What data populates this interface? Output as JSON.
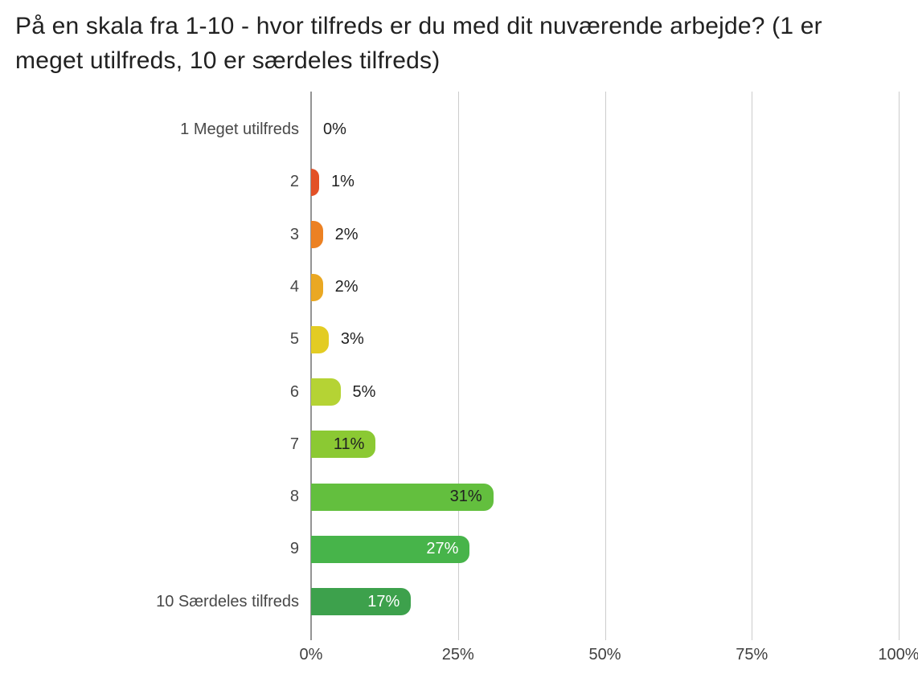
{
  "title": "På en skala fra 1-10 - hvor tilfreds er du med dit nuværende arbejde? (1 er meget utilfreds, 10 er særdeles tilfreds)",
  "chart_data": {
    "type": "bar",
    "orientation": "horizontal",
    "title": "På en skala fra 1-10 - hvor tilfreds er du med dit nuværende arbejde? (1 er meget utilfreds, 10 er særdeles tilfreds)",
    "categories": [
      "1 Meget utilfreds",
      "2",
      "3",
      "4",
      "5",
      "6",
      "7",
      "8",
      "9",
      "10 Særdeles tilfreds"
    ],
    "values": [
      0,
      1,
      2,
      2,
      3,
      5,
      11,
      31,
      27,
      17
    ],
    "data_labels": [
      "0%",
      "1%",
      "2%",
      "2%",
      "3%",
      "5%",
      "11%",
      "31%",
      "27%",
      "17%"
    ],
    "bar_colors": [
      "",
      "#e35127",
      "#ec8123",
      "#eaa823",
      "#e3cc23",
      "#b5d334",
      "#8bc933",
      "#63bf3e",
      "#47b44a",
      "#3da14c"
    ],
    "data_label_inside": [
      false,
      false,
      false,
      false,
      false,
      false,
      true,
      true,
      true,
      true
    ],
    "data_label_colors": [
      "#212121",
      "#212121",
      "#212121",
      "#212121",
      "#212121",
      "#212121",
      "#212121",
      "#212121",
      "#ffffff",
      "#ffffff"
    ],
    "x_ticks": [
      "0%",
      "25%",
      "50%",
      "75%",
      "100%"
    ],
    "x_tick_values": [
      0,
      25,
      50,
      75,
      100
    ],
    "xlim": [
      0,
      100
    ],
    "grid": true,
    "legend": "none",
    "colors": {
      "gridline": "#cccccc",
      "baseline": "#949494",
      "title_text": "#212121",
      "category_text": "#484848",
      "tick_text": "#3f3f3f"
    }
  }
}
